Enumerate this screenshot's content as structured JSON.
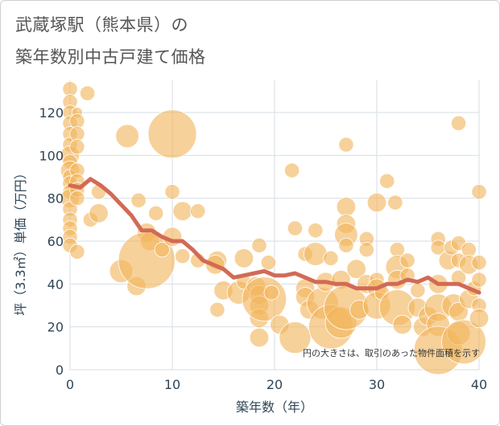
{
  "title_line1": "武蔵塚駅（熊本県）の",
  "title_line2": "築年数別中古戸建て価格",
  "chart_data": {
    "type": "scatter",
    "title": "武蔵塚駅（熊本県）の 築年数別中古戸建て価格",
    "xlabel": "築年数（年）",
    "ylabel": "坪（3.3㎡）単価（万円）",
    "xlim": [
      0,
      40
    ],
    "ylim": [
      0,
      135
    ],
    "xticks": [
      0,
      10,
      20,
      30,
      40
    ],
    "yticks": [
      0,
      20,
      40,
      60,
      80,
      100,
      120
    ],
    "grid": true,
    "annotation": "円の大きさは、取引のあった物件面積を示す",
    "scatter_color": "#f2b45c",
    "line_color": "#d26a55",
    "points": [
      {
        "x": 0,
        "y": 131,
        "s": 2
      },
      {
        "x": 0,
        "y": 125,
        "s": 2
      },
      {
        "x": 0,
        "y": 120,
        "s": 2
      },
      {
        "x": 0,
        "y": 115,
        "s": 2
      },
      {
        "x": 0,
        "y": 110,
        "s": 2
      },
      {
        "x": 0,
        "y": 105,
        "s": 2
      },
      {
        "x": 0,
        "y": 100,
        "s": 3
      },
      {
        "x": 0,
        "y": 97,
        "s": 2
      },
      {
        "x": 0,
        "y": 93,
        "s": 3
      },
      {
        "x": 0,
        "y": 90,
        "s": 2
      },
      {
        "x": 0,
        "y": 87,
        "s": 2
      },
      {
        "x": 0,
        "y": 83,
        "s": 2
      },
      {
        "x": 0,
        "y": 80,
        "s": 3
      },
      {
        "x": 0,
        "y": 75,
        "s": 2
      },
      {
        "x": 0,
        "y": 70,
        "s": 2
      },
      {
        "x": 0,
        "y": 66,
        "s": 2
      },
      {
        "x": 0,
        "y": 62,
        "s": 2
      },
      {
        "x": 0,
        "y": 58,
        "s": 2
      },
      {
        "x": 0.7,
        "y": 120,
        "s": 1
      },
      {
        "x": 0.7,
        "y": 116,
        "s": 2
      },
      {
        "x": 0.7,
        "y": 110,
        "s": 2
      },
      {
        "x": 0.7,
        "y": 104,
        "s": 2
      },
      {
        "x": 0.7,
        "y": 93,
        "s": 2
      },
      {
        "x": 0.7,
        "y": 88,
        "s": 2
      },
      {
        "x": 0.7,
        "y": 84,
        "s": 2
      },
      {
        "x": 0.7,
        "y": 80,
        "s": 2
      },
      {
        "x": 0.7,
        "y": 55,
        "s": 2
      },
      {
        "x": 1.7,
        "y": 129,
        "s": 2
      },
      {
        "x": 2,
        "y": 70,
        "s": 2
      },
      {
        "x": 2.8,
        "y": 83,
        "s": 2
      },
      {
        "x": 2.8,
        "y": 73,
        "s": 3
      },
      {
        "x": 5,
        "y": 46,
        "s": 4
      },
      {
        "x": 5.6,
        "y": 109,
        "s": 4
      },
      {
        "x": 6.5,
        "y": 39,
        "s": 3
      },
      {
        "x": 6.7,
        "y": 79,
        "s": 2
      },
      {
        "x": 7.5,
        "y": 64,
        "s": 3
      },
      {
        "x": 7.8,
        "y": 60,
        "s": 3
      },
      {
        "x": 7.5,
        "y": 51,
        "s": 12
      },
      {
        "x": 8.4,
        "y": 73,
        "s": 2
      },
      {
        "x": 9,
        "y": 56,
        "s": 2
      },
      {
        "x": 10,
        "y": 110,
        "s": 10
      },
      {
        "x": 10,
        "y": 83,
        "s": 2
      },
      {
        "x": 10,
        "y": 62,
        "s": 3
      },
      {
        "x": 11,
        "y": 74,
        "s": 3
      },
      {
        "x": 11,
        "y": 53,
        "s": 2
      },
      {
        "x": 12.5,
        "y": 74,
        "s": 2
      },
      {
        "x": 12.5,
        "y": 51,
        "s": 2
      },
      {
        "x": 14.4,
        "y": 51,
        "s": 3
      },
      {
        "x": 14.2,
        "y": 49,
        "s": 3
      },
      {
        "x": 14.4,
        "y": 28,
        "s": 2
      },
      {
        "x": 15,
        "y": 37,
        "s": 3
      },
      {
        "x": 16.5,
        "y": 36,
        "s": 4
      },
      {
        "x": 17,
        "y": 52,
        "s": 3
      },
      {
        "x": 17,
        "y": 41,
        "s": 2
      },
      {
        "x": 18.5,
        "y": 58,
        "s": 2
      },
      {
        "x": 18.2,
        "y": 39,
        "s": 3
      },
      {
        "x": 18.5,
        "y": 35,
        "s": 3
      },
      {
        "x": 18.5,
        "y": 30,
        "s": 3
      },
      {
        "x": 18.5,
        "y": 24,
        "s": 3
      },
      {
        "x": 18.5,
        "y": 15,
        "s": 3
      },
      {
        "x": 19,
        "y": 33,
        "s": 9
      },
      {
        "x": 19.4,
        "y": 50,
        "s": 2
      },
      {
        "x": 19.7,
        "y": 36,
        "s": 2
      },
      {
        "x": 20.5,
        "y": 21,
        "s": 3
      },
      {
        "x": 21.7,
        "y": 93,
        "s": 2
      },
      {
        "x": 22,
        "y": 66,
        "s": 2
      },
      {
        "x": 22,
        "y": 15,
        "s": 6
      },
      {
        "x": 23,
        "y": 54,
        "s": 2
      },
      {
        "x": 23,
        "y": 38,
        "s": 3
      },
      {
        "x": 23,
        "y": 34,
        "s": 3
      },
      {
        "x": 23.4,
        "y": 28,
        "s": 3
      },
      {
        "x": 24,
        "y": 65,
        "s": 2
      },
      {
        "x": 24,
        "y": 54,
        "s": 4
      },
      {
        "x": 24.7,
        "y": 31,
        "s": 6
      },
      {
        "x": 25,
        "y": 41,
        "s": 3
      },
      {
        "x": 25.5,
        "y": 52,
        "s": 2
      },
      {
        "x": 25.5,
        "y": 20,
        "s": 9
      },
      {
        "x": 26.5,
        "y": 42,
        "s": 3
      },
      {
        "x": 26.5,
        "y": 22,
        "s": 6
      },
      {
        "x": 27,
        "y": 105,
        "s": 2
      },
      {
        "x": 27,
        "y": 76,
        "s": 3
      },
      {
        "x": 27,
        "y": 68,
        "s": 3
      },
      {
        "x": 27,
        "y": 63,
        "s": 4
      },
      {
        "x": 27,
        "y": 58,
        "s": 2
      },
      {
        "x": 27,
        "y": 29,
        "s": 9
      },
      {
        "x": 28,
        "y": 47,
        "s": 3
      },
      {
        "x": 28.3,
        "y": 28,
        "s": 3
      },
      {
        "x": 29,
        "y": 61,
        "s": 2
      },
      {
        "x": 29,
        "y": 56,
        "s": 2
      },
      {
        "x": 29,
        "y": 40,
        "s": 3
      },
      {
        "x": 30,
        "y": 78,
        "s": 3
      },
      {
        "x": 30,
        "y": 42,
        "s": 2
      },
      {
        "x": 30,
        "y": 38,
        "s": 3
      },
      {
        "x": 30,
        "y": 30,
        "s": 5
      },
      {
        "x": 30.5,
        "y": 36,
        "s": 2
      },
      {
        "x": 31,
        "y": 88,
        "s": 2
      },
      {
        "x": 31.8,
        "y": 78,
        "s": 2
      },
      {
        "x": 32,
        "y": 56,
        "s": 2
      },
      {
        "x": 32,
        "y": 48,
        "s": 4
      },
      {
        "x": 32,
        "y": 42,
        "s": 3
      },
      {
        "x": 32,
        "y": 29,
        "s": 7
      },
      {
        "x": 32.5,
        "y": 21,
        "s": 3
      },
      {
        "x": 33,
        "y": 51,
        "s": 2
      },
      {
        "x": 33,
        "y": 44,
        "s": 2
      },
      {
        "x": 34,
        "y": 37,
        "s": 2
      },
      {
        "x": 34,
        "y": 29,
        "s": 3
      },
      {
        "x": 34.5,
        "y": 20,
        "s": 3
      },
      {
        "x": 35,
        "y": 25,
        "s": 3
      },
      {
        "x": 36,
        "y": 61,
        "s": 2
      },
      {
        "x": 36,
        "y": 57,
        "s": 2
      },
      {
        "x": 36,
        "y": 40,
        "s": 3
      },
      {
        "x": 36,
        "y": 29,
        "s": 5
      },
      {
        "x": 36,
        "y": 21,
        "s": 4
      },
      {
        "x": 36,
        "y": 9,
        "s": 10
      },
      {
        "x": 37,
        "y": 51,
        "s": 3
      },
      {
        "x": 37.3,
        "y": 57,
        "s": 2
      },
      {
        "x": 37.5,
        "y": 30,
        "s": 4
      },
      {
        "x": 38,
        "y": 115,
        "s": 2
      },
      {
        "x": 38,
        "y": 59,
        "s": 2
      },
      {
        "x": 38,
        "y": 51,
        "s": 2
      },
      {
        "x": 38,
        "y": 43,
        "s": 2
      },
      {
        "x": 38,
        "y": 27,
        "s": 3
      },
      {
        "x": 38,
        "y": 17,
        "s": 4
      },
      {
        "x": 38.5,
        "y": 13,
        "s": 9
      },
      {
        "x": 39,
        "y": 56,
        "s": 2
      },
      {
        "x": 39,
        "y": 49,
        "s": 3
      },
      {
        "x": 39,
        "y": 33,
        "s": 3
      },
      {
        "x": 39.5,
        "y": 38,
        "s": 2
      },
      {
        "x": 40,
        "y": 83,
        "s": 2
      },
      {
        "x": 40,
        "y": 50,
        "s": 2
      },
      {
        "x": 40,
        "y": 42,
        "s": 2
      },
      {
        "x": 40,
        "y": 30,
        "s": 2
      },
      {
        "x": 40,
        "y": 24,
        "s": 3
      }
    ],
    "trend": {
      "x": [
        0,
        1,
        2,
        3,
        4,
        5,
        6,
        7,
        8,
        9,
        10,
        11,
        12,
        13,
        14,
        15,
        16,
        17,
        18,
        19,
        20,
        21,
        22,
        23,
        24,
        25,
        26,
        27,
        28,
        29,
        30,
        31,
        32,
        33,
        34,
        35,
        36,
        37,
        38,
        39,
        40
      ],
      "y": [
        86,
        85,
        89,
        86,
        82,
        77,
        72,
        65,
        65,
        62,
        60,
        60,
        56,
        51,
        49,
        47,
        43,
        44,
        45,
        46,
        44,
        44,
        45,
        43,
        41,
        41,
        40,
        40,
        38,
        38,
        38,
        40,
        40,
        42,
        41,
        43,
        40,
        40,
        40,
        38,
        36
      ]
    }
  }
}
